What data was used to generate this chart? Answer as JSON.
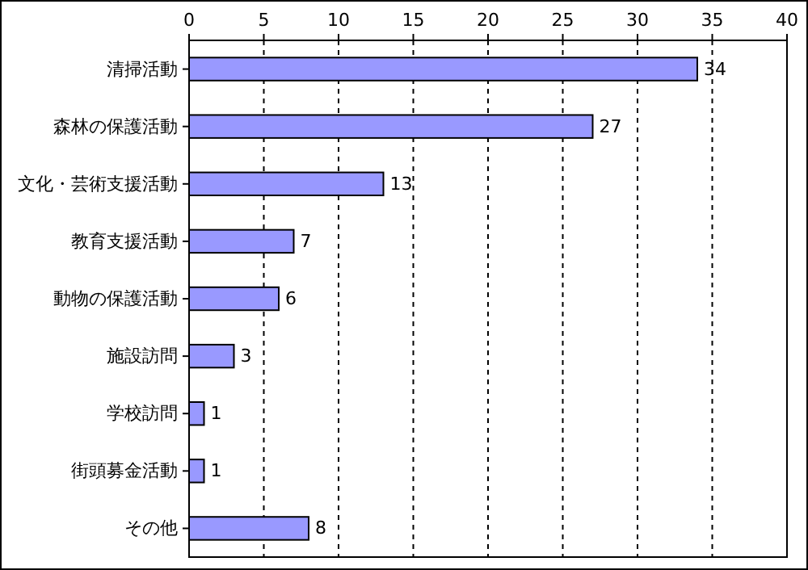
{
  "chart_data": {
    "type": "bar",
    "orientation": "horizontal",
    "categories": [
      "清掃活動",
      "森林の保護活動",
      "文化・芸術支援活動",
      "教育支援活動",
      "動物の保護活動",
      "施設訪問",
      "学校訪問",
      "街頭募金活動",
      "その他"
    ],
    "values": [
      34,
      27,
      13,
      7,
      6,
      3,
      1,
      1,
      8
    ],
    "color": "#9999ff",
    "xlim": [
      0,
      40
    ],
    "xticks": [
      0,
      5,
      10,
      15,
      20,
      25,
      30,
      35,
      40
    ],
    "grid": "x",
    "data_labels": true
  }
}
